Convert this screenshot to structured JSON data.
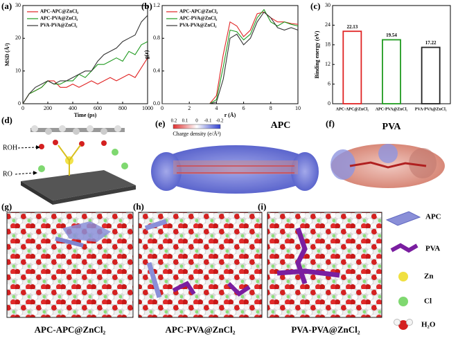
{
  "chart_data": [
    {
      "type": "line",
      "xlabel": "Time (ps)",
      "ylabel": "MSD (Å²)",
      "legend": "upper left",
      "x": [
        0,
        50,
        100,
        150,
        200,
        250,
        300,
        350,
        400,
        450,
        500,
        550,
        600,
        650,
        700,
        750,
        800,
        850,
        900,
        950,
        1000
      ],
      "xlim": [
        0,
        1000
      ],
      "xticks": [
        0,
        200,
        400,
        600,
        800,
        1000
      ],
      "ylim": [
        0,
        30
      ],
      "yticks": [
        0,
        10,
        20,
        30
      ],
      "series": [
        {
          "name": "APC-APC@ZnCl₂",
          "color": "#e02222",
          "values": [
            0,
            3,
            4,
            5,
            7,
            7,
            5,
            5,
            6,
            5,
            6,
            7,
            6,
            7,
            8,
            7,
            8,
            9,
            8,
            11,
            14
          ]
        },
        {
          "name": "APC-PVA@ZnCl₂",
          "color": "#1f9a1f",
          "values": [
            0,
            3,
            4,
            5,
            7,
            6,
            6,
            7,
            7,
            9,
            8,
            10,
            12,
            12,
            13,
            14,
            13,
            16,
            15,
            18,
            19
          ]
        },
        {
          "name": "PVA-PVA@ZnCl₂",
          "color": "#333333",
          "values": [
            0,
            3,
            5,
            6,
            7,
            6,
            7,
            7,
            8,
            9,
            10,
            10,
            13,
            15,
            16,
            17,
            19,
            20,
            21,
            25,
            27
          ]
        }
      ]
    },
    {
      "type": "line",
      "xlabel": "r (Å)",
      "ylabel": "g(r)",
      "legend": "upper left",
      "x": [
        0,
        1,
        2,
        3,
        3.5,
        4,
        4.5,
        5,
        5.5,
        6,
        6.5,
        7,
        7.5,
        8,
        8.5,
        9,
        9.5,
        10
      ],
      "xlim": [
        0,
        10
      ],
      "xticks": [
        0,
        2,
        4,
        6,
        8,
        10
      ],
      "ylim": [
        0,
        1.2
      ],
      "yticks": [
        {
          "value": 0,
          "label": "0.0"
        },
        0.4,
        0.8,
        1.2
      ],
      "series": [
        {
          "name": "APC-APC@ZnCl₂",
          "color": "#e02222",
          "values": [
            0,
            0,
            0,
            0,
            0,
            0.1,
            0.6,
            1.0,
            0.95,
            0.82,
            0.9,
            1.1,
            1.12,
            1.05,
            1.0,
            1.0,
            0.98,
            0.97
          ]
        },
        {
          "name": "APC-PVA@ZnCl₂",
          "color": "#1f9a1f",
          "values": [
            0,
            0,
            0,
            0,
            0,
            0.05,
            0.45,
            0.9,
            0.88,
            0.78,
            0.85,
            1.05,
            1.15,
            1.0,
            0.95,
            1.0,
            0.97,
            0.95
          ]
        },
        {
          "name": "PVA-PVA@ZnCl₂",
          "color": "#333333",
          "values": [
            0,
            0,
            0,
            0,
            0,
            0.02,
            0.3,
            0.8,
            0.85,
            0.72,
            0.8,
            1.0,
            1.12,
            1.05,
            0.93,
            0.9,
            0.93,
            0.9
          ]
        }
      ]
    },
    {
      "type": "bar",
      "ylabel": "Binding energy (eV)",
      "categories": [
        "APC-APC@ZnCl₂",
        "APC-PVA@ZnCl₂",
        "PVA-PVA@ZnCl₂"
      ],
      "values": [
        22.13,
        19.54,
        17.22
      ],
      "colors": [
        "#e02222",
        "#1f9a1f",
        "#222222"
      ],
      "ylim": [
        0,
        30
      ],
      "yticks": [
        0,
        6,
        12,
        18,
        24,
        30
      ]
    }
  ],
  "panels": {
    "labels": [
      "(a)",
      "(b)",
      "(c)",
      "(d)",
      "(e)",
      "(f)",
      "(g)",
      "(h)",
      "(i)"
    ],
    "d": {
      "roh": "ROH",
      "ro": "RO"
    },
    "e": {
      "title": "APC",
      "colorbar_ticks": [
        "0.2",
        "0.1",
        "0",
        "-0.1",
        "-0.2"
      ],
      "colorbar_label": "Charge density (e/Å³)"
    },
    "f": {
      "title": "PVA"
    },
    "captions": [
      "APC-APC@ZnCl₂",
      "APC-PVA@ZnCl₂",
      "PVA-PVA@ZnCl₂"
    ],
    "legend": [
      "APC",
      "PVA",
      "Zn",
      "Cl",
      "H₂O"
    ]
  }
}
